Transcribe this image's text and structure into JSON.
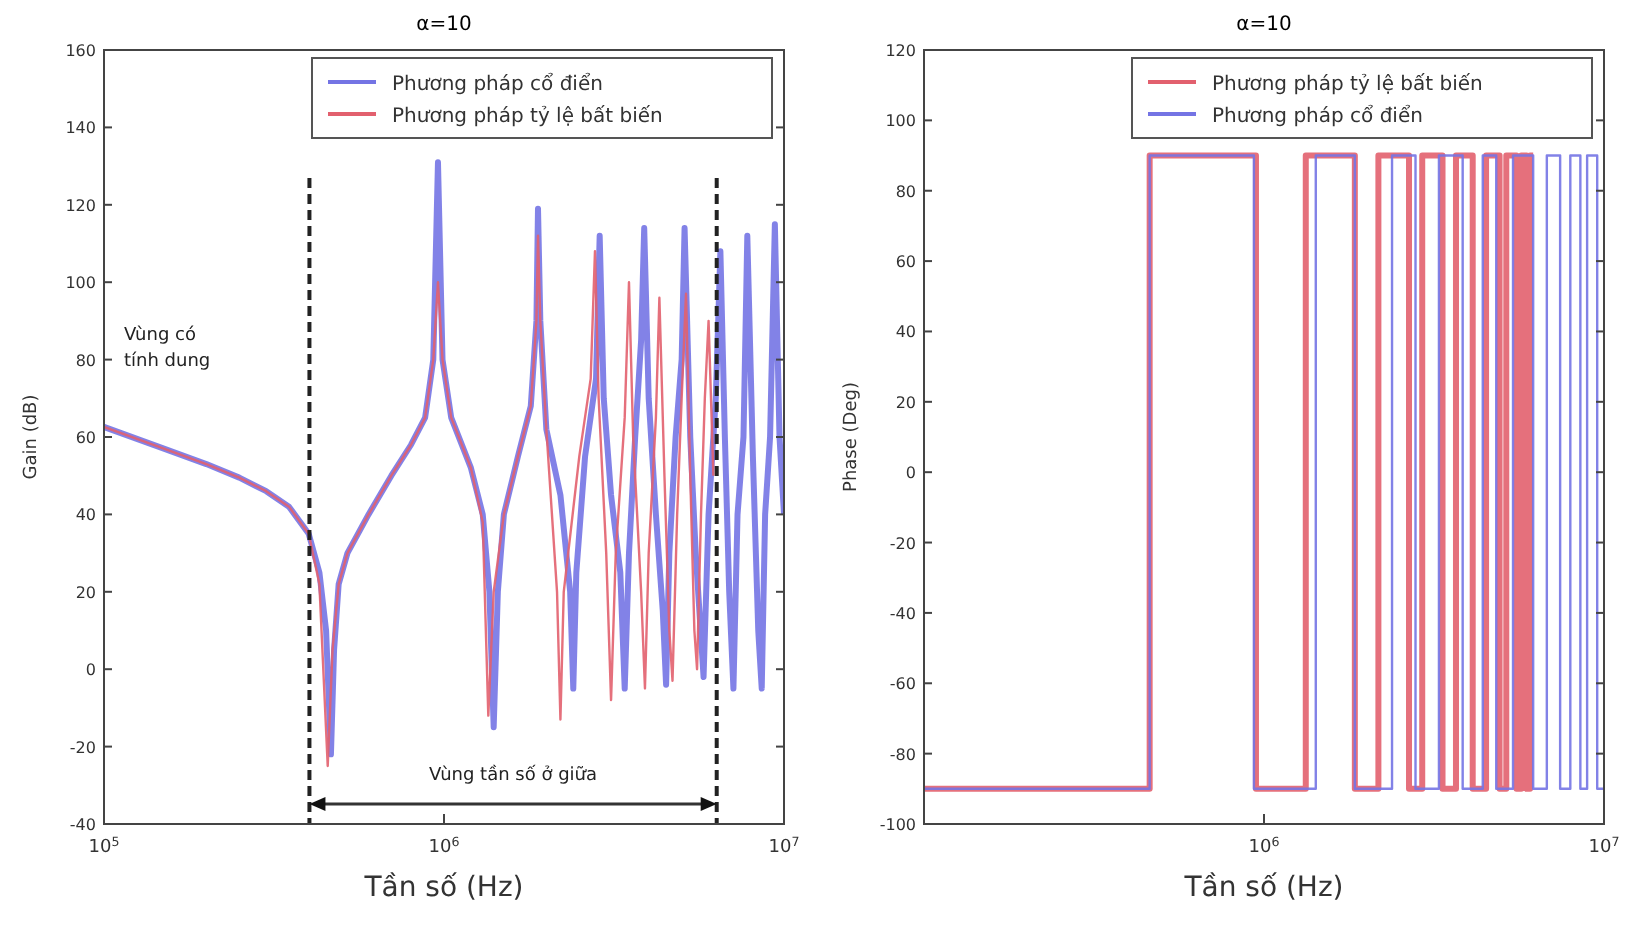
{
  "chart_data": [
    {
      "type": "line",
      "title": "α=10",
      "xlabel": "Tần số (Hz)",
      "ylabel": "Gain (dB)",
      "log": "x",
      "xlim": [
        100000,
        10000000
      ],
      "xticks": [
        {
          "value": 100000,
          "label": "10$^{5}$"
        },
        {
          "value": 1000000,
          "label": "10$^{6}$"
        },
        {
          "value": 10000000,
          "label": "10$^{7}$"
        }
      ],
      "ylim": [
        -40,
        160
      ],
      "yticks": [
        -40,
        -20,
        0,
        20,
        40,
        60,
        80,
        100,
        120,
        140,
        160
      ],
      "legend": "top right",
      "line_style": "solid",
      "series": [
        {
          "name": "Phương pháp cổ điển",
          "color": "#7474e4",
          "x": [
            100000,
            150000,
            200000,
            250000,
            300000,
            350000,
            400000,
            430000,
            450000,
            465000,
            475000,
            490000,
            520000,
            600000,
            700000,
            800000,
            880000,
            930000,
            960000,
            990000,
            1050000,
            1200000,
            1300000,
            1360000,
            1400000,
            1440000,
            1500000,
            1650000,
            1800000,
            1870000,
            1890000,
            1920000,
            2000000,
            2200000,
            2350000,
            2400000,
            2450000,
            2600000,
            2800000,
            2870000,
            2950000,
            3100000,
            3300000,
            3400000,
            3500000,
            3650000,
            3800000,
            3880000,
            4000000,
            4200000,
            4400000,
            4500000,
            4600000,
            4800000,
            5000000,
            5100000,
            5300000,
            5500000,
            5800000,
            6000000,
            6300000,
            6500000,
            6700000,
            6900000,
            7100000,
            7300000,
            7600000,
            7800000,
            8100000,
            8400000,
            8600000,
            8800000,
            9100000,
            9400000,
            9700000,
            10000000
          ],
          "values": [
            62.6,
            57,
            53,
            49.5,
            46,
            42,
            35,
            25,
            10,
            -22,
            5,
            22,
            30,
            40,
            50,
            58,
            65,
            80,
            131,
            80,
            65,
            52,
            40,
            20,
            -15,
            20,
            40,
            55,
            68,
            90,
            119,
            90,
            62,
            45,
            20,
            -5,
            25,
            55,
            75,
            112,
            70,
            45,
            25,
            -5,
            30,
            60,
            85,
            114,
            70,
            40,
            15,
            -4,
            30,
            60,
            80,
            114,
            60,
            30,
            -2,
            40,
            70,
            108,
            60,
            20,
            -5,
            40,
            60,
            112,
            55,
            10,
            -5,
            40,
            60,
            115,
            60,
            40
          ]
        },
        {
          "name": "Phương pháp tỷ lệ bất biến",
          "color": "#e2606e",
          "x": [
            100000,
            150000,
            200000,
            250000,
            300000,
            350000,
            400000,
            430000,
            455000,
            470000,
            490000,
            520000,
            600000,
            700000,
            800000,
            880000,
            930000,
            960000,
            990000,
            1050000,
            1200000,
            1300000,
            1350000,
            1400000,
            1500000,
            1650000,
            1800000,
            1870000,
            1890000,
            1920000,
            2000000,
            2150000,
            2200000,
            2250000,
            2500000,
            2700000,
            2780000,
            2850000,
            3000000,
            3100000,
            3200000,
            3400000,
            3500000,
            3600000,
            3800000,
            3900000,
            4000000,
            4200000,
            4300000,
            4450000,
            4600000,
            4700000,
            4850000,
            5000000,
            5150000,
            5300000,
            5450000,
            5550000,
            5700000,
            5850000,
            6000000,
            6200000
          ],
          "values": [
            62.6,
            57,
            53,
            49.5,
            46,
            42,
            35,
            22,
            -25,
            5,
            22,
            30,
            40,
            50,
            58,
            65,
            80,
            100,
            80,
            65,
            52,
            38,
            -12,
            20,
            40,
            55,
            68,
            90,
            112,
            90,
            62,
            20,
            -13,
            20,
            55,
            75,
            108,
            70,
            30,
            -8,
            30,
            65,
            100,
            60,
            20,
            -5,
            30,
            65,
            96,
            50,
            10,
            -3,
            40,
            70,
            97,
            50,
            10,
            0,
            40,
            70,
            90,
            50
          ]
        }
      ],
      "ref_lines": [
        {
          "axis": "x",
          "value": 402000,
          "color": "#222222",
          "line_style": "dashed"
        },
        {
          "axis": "x",
          "value": 6340000,
          "color": "#222222",
          "line_style": "dashed"
        }
      ],
      "annotations": [
        "Vùng có tính dung",
        "Vùng tần số ở giữa"
      ]
    },
    {
      "type": "step",
      "title": "α=10",
      "xlabel": "Tần số (Hz)",
      "ylabel": "Phase (Deg)",
      "log": "x",
      "xlim": [
        100000,
        10000000
      ],
      "xticks": [
        {
          "value": 100000,
          "label": null
        },
        {
          "value": 1000000,
          "label": "10$^{6}$"
        },
        {
          "value": 10000000,
          "label": "10$^{7}$"
        }
      ],
      "ylim": [
        -100,
        120
      ],
      "yticks": [
        -100,
        -80,
        -60,
        -40,
        -20,
        0,
        20,
        40,
        60,
        80,
        100,
        120
      ],
      "legend": "top right",
      "line_style": "solid",
      "series": [
        {
          "name": "Phương pháp tỷ lệ bất biến",
          "color": "#e2606e",
          "x": [
            100000,
            461000,
            947000,
            1327000,
            1850000,
            2170000,
            2670000,
            2920000,
            3350000,
            3670000,
            4110000,
            4500000,
            4930000,
            5160000,
            5530000,
            5710000,
            5920000,
            6060000,
            6190000
          ],
          "values": [
            -90,
            90,
            -90,
            90,
            -90,
            90,
            -90,
            90,
            -90,
            90,
            -90,
            90,
            -90,
            90,
            -90,
            90,
            -90,
            90,
            90
          ]
        },
        {
          "name": "Phương pháp cổ điển",
          "color": "#7474e4",
          "x": [
            100000,
            461000,
            934000,
            1420000,
            1850000,
            2380000,
            2790000,
            3270000,
            3840000,
            4400000,
            4820000,
            5400000,
            6190000,
            6790000,
            7430000,
            7960000,
            8520000,
            8920000,
            9550000,
            10000000
          ],
          "values": [
            -90,
            90,
            -90,
            90,
            -90,
            90,
            -90,
            90,
            -90,
            90,
            -90,
            90,
            -90,
            90,
            -90,
            90,
            -90,
            90,
            -90,
            -90
          ]
        }
      ]
    }
  ]
}
